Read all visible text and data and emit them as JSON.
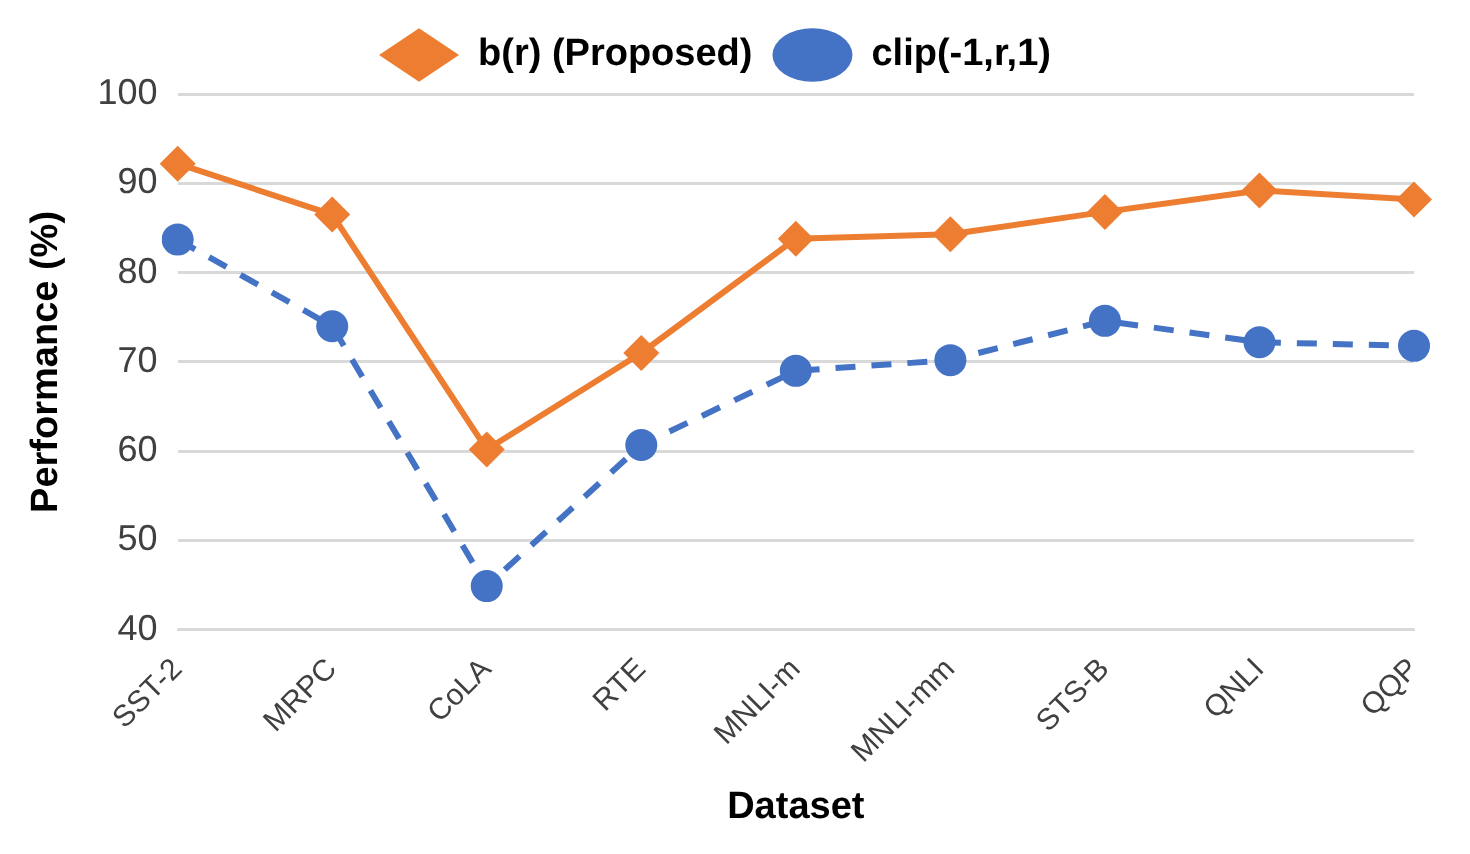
{
  "chart_data": {
    "type": "line",
    "xlabel": "Dataset",
    "ylabel": "Performance (%)",
    "categories": [
      "SST-2",
      "MRPC",
      "CoLA",
      "RTE",
      "MNLI-m",
      "MNLI-mm",
      "STS-B",
      "QNLI",
      "QQP"
    ],
    "series": [
      {
        "name": "b(r) (Proposed)",
        "color": "#ed7d31",
        "marker": "diamond",
        "line_style": "solid",
        "values": [
          92.2,
          86.5,
          60.2,
          71.0,
          83.8,
          84.3,
          86.8,
          89.2,
          88.2
        ]
      },
      {
        "name": "clip(-1,r,1)",
        "color": "#4472c4",
        "marker": "circle",
        "line_style": "dashed",
        "values": [
          83.7,
          74.0,
          44.9,
          60.7,
          69.0,
          70.2,
          74.6,
          72.2,
          71.8
        ]
      }
    ],
    "ylim": [
      40,
      100
    ],
    "yticks": [
      40,
      50,
      60,
      70,
      80,
      90,
      100
    ],
    "grid": "y",
    "legend": "top"
  }
}
